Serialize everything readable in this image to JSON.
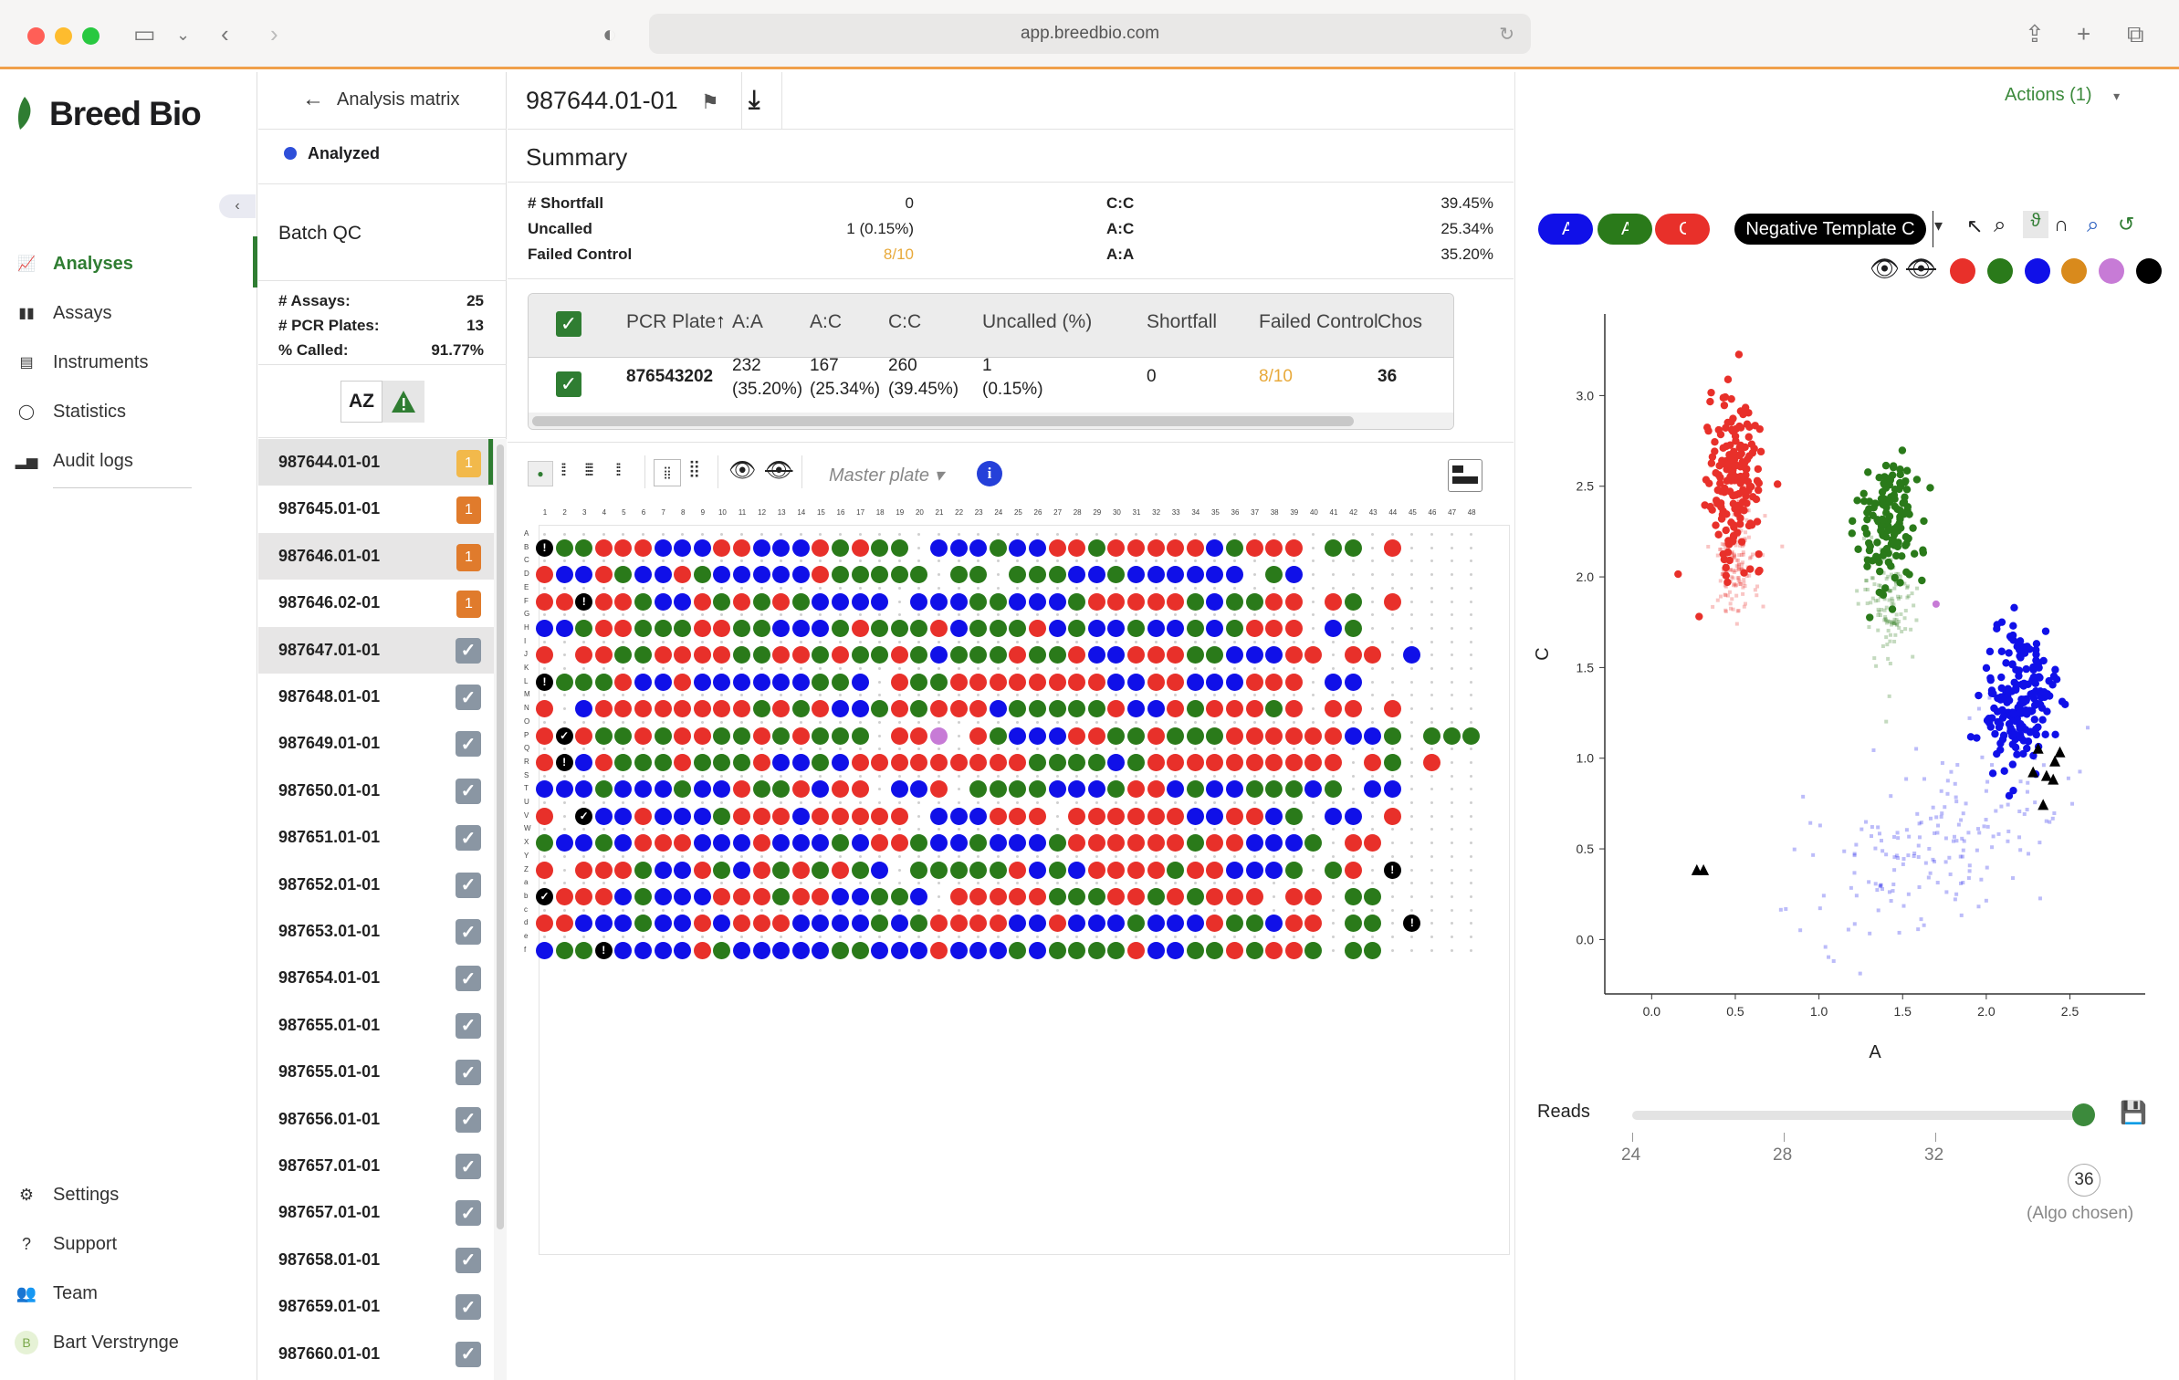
{
  "browser": {
    "url": "app.breedbio.com"
  },
  "brand": {
    "name": "Breed Bio",
    "accent": "#2f7d32"
  },
  "nav": {
    "items": [
      {
        "label": "Analyses",
        "icon": "chart-icon",
        "active": true
      },
      {
        "label": "Assays",
        "icon": "bars-icon"
      },
      {
        "label": "Instruments",
        "icon": "instrument-icon"
      },
      {
        "label": "Statistics",
        "icon": "circle-icon"
      },
      {
        "label": "Audit logs",
        "icon": "barchart-icon"
      }
    ],
    "bottom": [
      {
        "label": "Settings",
        "icon": "gear-icon"
      },
      {
        "label": "Support",
        "icon": "question-icon"
      },
      {
        "label": "Team",
        "icon": "team-icon"
      },
      {
        "label": "Bart Verstrynge",
        "icon": "avatar-icon"
      }
    ],
    "avatar_letter": "B"
  },
  "panel": {
    "back_label": "Analysis matrix",
    "status": "Analyzed",
    "section": "Batch QC",
    "stats": [
      {
        "label": "# Assays:",
        "value": "25"
      },
      {
        "label": "# PCR Plates:",
        "value": "13"
      },
      {
        "label": "% Called:",
        "value": "91.77%"
      }
    ],
    "sort_label": "AZ",
    "items": [
      {
        "name": "987644.01-01",
        "badge": "1",
        "badge_color": "#f2b94b"
      },
      {
        "name": "987645.01-01",
        "badge": "1",
        "badge_color": "#e07b2c"
      },
      {
        "name": "987646.01-01",
        "badge": "1",
        "badge_color": "#e07b2c"
      },
      {
        "name": "987646.02-01",
        "badge": "1",
        "badge_color": "#e07b2c"
      },
      {
        "name": "987647.01-01"
      },
      {
        "name": "987648.01-01"
      },
      {
        "name": "987649.01-01"
      },
      {
        "name": "987650.01-01"
      },
      {
        "name": "987651.01-01"
      },
      {
        "name": "987652.01-01"
      },
      {
        "name": "987653.01-01"
      },
      {
        "name": "987654.01-01"
      },
      {
        "name": "987655.01-01"
      },
      {
        "name": "987655.01-01"
      },
      {
        "name": "987656.01-01"
      },
      {
        "name": "987657.01-01"
      },
      {
        "name": "987657.01-01"
      },
      {
        "name": "987658.01-01"
      },
      {
        "name": "987659.01-01"
      },
      {
        "name": "987660.01-01"
      }
    ]
  },
  "header": {
    "title": "987644.01-01",
    "actions_label": "Actions (1)"
  },
  "summary": {
    "title": "Summary",
    "left": [
      {
        "label": "# Shortfall",
        "value": "0"
      },
      {
        "label": "Uncalled",
        "value": "1 (0.15%)"
      },
      {
        "label": "Failed Control",
        "value": "8/10"
      }
    ],
    "right": [
      {
        "label": "C:C",
        "value": "39.45%"
      },
      {
        "label": "A:C",
        "value": "25.34%"
      },
      {
        "label": "A:A",
        "value": "35.20%"
      }
    ]
  },
  "table": {
    "headers": [
      "PCR Plate",
      "A:A",
      "A:C",
      "C:C",
      "Uncalled (%)",
      "Shortfall",
      "Failed Control",
      "Chos"
    ],
    "row": {
      "plate": "876543202",
      "aa": "232",
      "aa_pct": "(35.20%)",
      "ac": "167",
      "ac_pct": "(25.34%)",
      "cc": "260",
      "cc_pct": "(39.45%)",
      "uncalled": "1",
      "uncalled_pct": "(0.15%)",
      "shortfall": "0",
      "failed": "8/10",
      "chosen": "36"
    }
  },
  "plate": {
    "master_label": "Master plate",
    "cols": [
      "1",
      "2",
      "3",
      "4",
      "5",
      "6",
      "7",
      "8",
      "9",
      "10",
      "11",
      "12",
      "13",
      "14",
      "15",
      "16",
      "17",
      "18",
      "19",
      "20",
      "21",
      "22",
      "23",
      "24",
      "25",
      "26",
      "27",
      "28",
      "29",
      "30",
      "31",
      "32",
      "33",
      "34",
      "35",
      "36",
      "37",
      "38",
      "39",
      "40",
      "41",
      "42",
      "43",
      "44",
      "45",
      "46",
      "47",
      "48"
    ],
    "rows": [
      "A",
      "B",
      "C",
      "D",
      "E",
      "F",
      "G",
      "H",
      "I",
      "J",
      "K",
      "L",
      "M",
      "N",
      "O",
      "P",
      "Q",
      "R",
      "S",
      "T",
      "U",
      "V",
      "W",
      "X",
      "Y",
      "Z",
      "a",
      "b",
      "c",
      "d",
      "e",
      "f"
    ],
    "colors": {
      "R": "#e8302a",
      "G": "#2a7a1a",
      "B": "#1010e8",
      "P": "#c77bd6",
      "K": "#000000"
    },
    "data": [
      "KGGRRRBBBRRBBBRGRGG.BBBGBBRRGRRRRRBGRRR.GG.R",
      "RBBRGBBRGBBBBBRGGGGG.GG.GGGBBGBBBBBB.GB",
      "RRKRRGBBRGRGRGBBBB.BBBGGBBBGRRRRRGBGGRR.RG.R",
      "BBGRRGGGRRGGBBBGRGGGRBGGGRBGBBGBBGBGRRR.BG",
      "R.RRGGRRRRGGRRGRGGRGBGGGRGGRBBRRRGGBBBRR.RR.B",
      "KGGGRBBRBBBBBBGGB.RGGRRRRRRRRBBRRBBBRRR.BB",
      "R.BRRRRRRRRGRGRBBGRGRRRBGGGGGRBBRGRRRGR.RR.R",
      "RKRGGRGRRGGRGRGGG.RRP.RGBBBRRGGRGGGRRRRRRBBG.GGG",
      "RKBRGGGRGGGRBBGBRRRRRRRRRGGGGBGRRRRRRRRRR.RG.R",
      "BBBGBBBGBBRGGRBRR.BBR.GGGGBBBGRRBGBBGGGBG.BB",
      "R.KBBRBBBGRRRBRRRRR.BBBRRR.RRRRRRBBRRBG.BB.R",
      "GBBGBRRRBBBRBBBGBRRGBBGBBBGRRRRRRGRRBBBG.RR",
      "R.RRRGBBRGBRGRGRGB.GGGGGRBGBRRRRGRRBBBG.GR.K",
      "KRRRBGBBBRRRGRRBBGGB.RRRRRGGGRRGRGRRR.RR.GG",
      "RRBBBGBBRBRRRBBBBGBGRRRRBBRBBBGBBBRGGBRR.GG.K",
      "BGGKBBBBRGBBBBBGGBBBRBBBGBGGGGRBBGGRGRRG.GG"
    ]
  },
  "scatter": {
    "chips": [
      {
        "label": "A:A",
        "color": "#1010e8"
      },
      {
        "label": "A:C",
        "color": "#2a7a1a"
      },
      {
        "label": "C:C",
        "color": "#e8302a"
      },
      {
        "label": "Negative Template C",
        "color": "#000000"
      }
    ],
    "legend_colors": [
      "#e8302a",
      "#2a7a1a",
      "#1010e8",
      "#d98a1c",
      "#c77bd6",
      "#000000"
    ],
    "xlabel": "A",
    "ylabel": "C",
    "xlim": [
      -0.28,
      2.95
    ],
    "ylim": [
      -0.3,
      3.45
    ],
    "xticks": [
      "0.0",
      "0.5",
      "1.0",
      "1.5",
      "2.0",
      "2.5"
    ],
    "yticks": [
      "0.0",
      "0.5",
      "1.0",
      "1.5",
      "2.0",
      "2.5",
      "3.0"
    ],
    "clusters": [
      {
        "name": "C:C",
        "color": "#e8302a",
        "cx": 0.5,
        "cy": 2.55,
        "n": 180,
        "sx": 0.08,
        "sy": 0.22
      },
      {
        "name": "A:C",
        "color": "#2a7a1a",
        "cx": 1.42,
        "cy": 2.3,
        "n": 140,
        "sx": 0.09,
        "sy": 0.2
      },
      {
        "name": "A:A",
        "color": "#1010e8",
        "cx": 2.2,
        "cy": 1.32,
        "n": 200,
        "sx": 0.1,
        "sy": 0.18
      }
    ],
    "ntc_points": [
      [
        0.27,
        0.38
      ],
      [
        0.31,
        0.38
      ],
      [
        2.31,
        1.05
      ],
      [
        2.36,
        0.9
      ],
      [
        2.28,
        0.92
      ],
      [
        2.41,
        0.98
      ],
      [
        2.44,
        1.03
      ],
      [
        2.34,
        0.74
      ],
      [
        2.4,
        0.88
      ]
    ],
    "reads_label": "Reads",
    "reads_ticks": [
      "24",
      "28",
      "32"
    ],
    "reads_value": "36",
    "reads_note": "(Algo chosen)"
  }
}
